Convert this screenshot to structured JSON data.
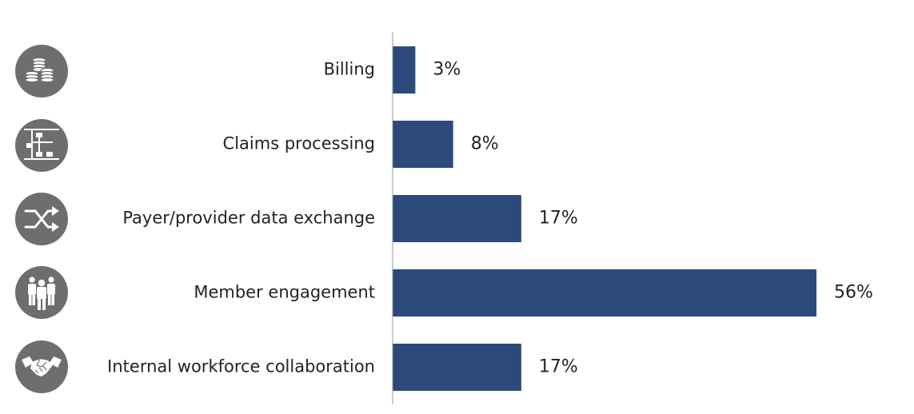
{
  "chart_data": {
    "type": "bar",
    "orientation": "horizontal",
    "categories": [
      "Billing",
      "Claims processing",
      "Payer/provider data exchange",
      "Member engagement",
      "Internal workforce collaboration"
    ],
    "values": [
      3,
      8,
      17,
      56,
      17
    ],
    "value_labels": [
      "3%",
      "8%",
      "17%",
      "56%",
      "17%"
    ],
    "value_unit": "%",
    "xlim": [
      0,
      56
    ],
    "grid": false,
    "legend": "none",
    "icons": [
      "coins-icon",
      "workflow-icon",
      "shuffle-icon",
      "people-icon",
      "handshake-icon"
    ],
    "colors": {
      "bar": "#2b4a79",
      "icon_circle": "#6e6e6e",
      "icon_glyph": "#ffffff",
      "axis": "#9a9a9a",
      "text": "#222222"
    }
  }
}
